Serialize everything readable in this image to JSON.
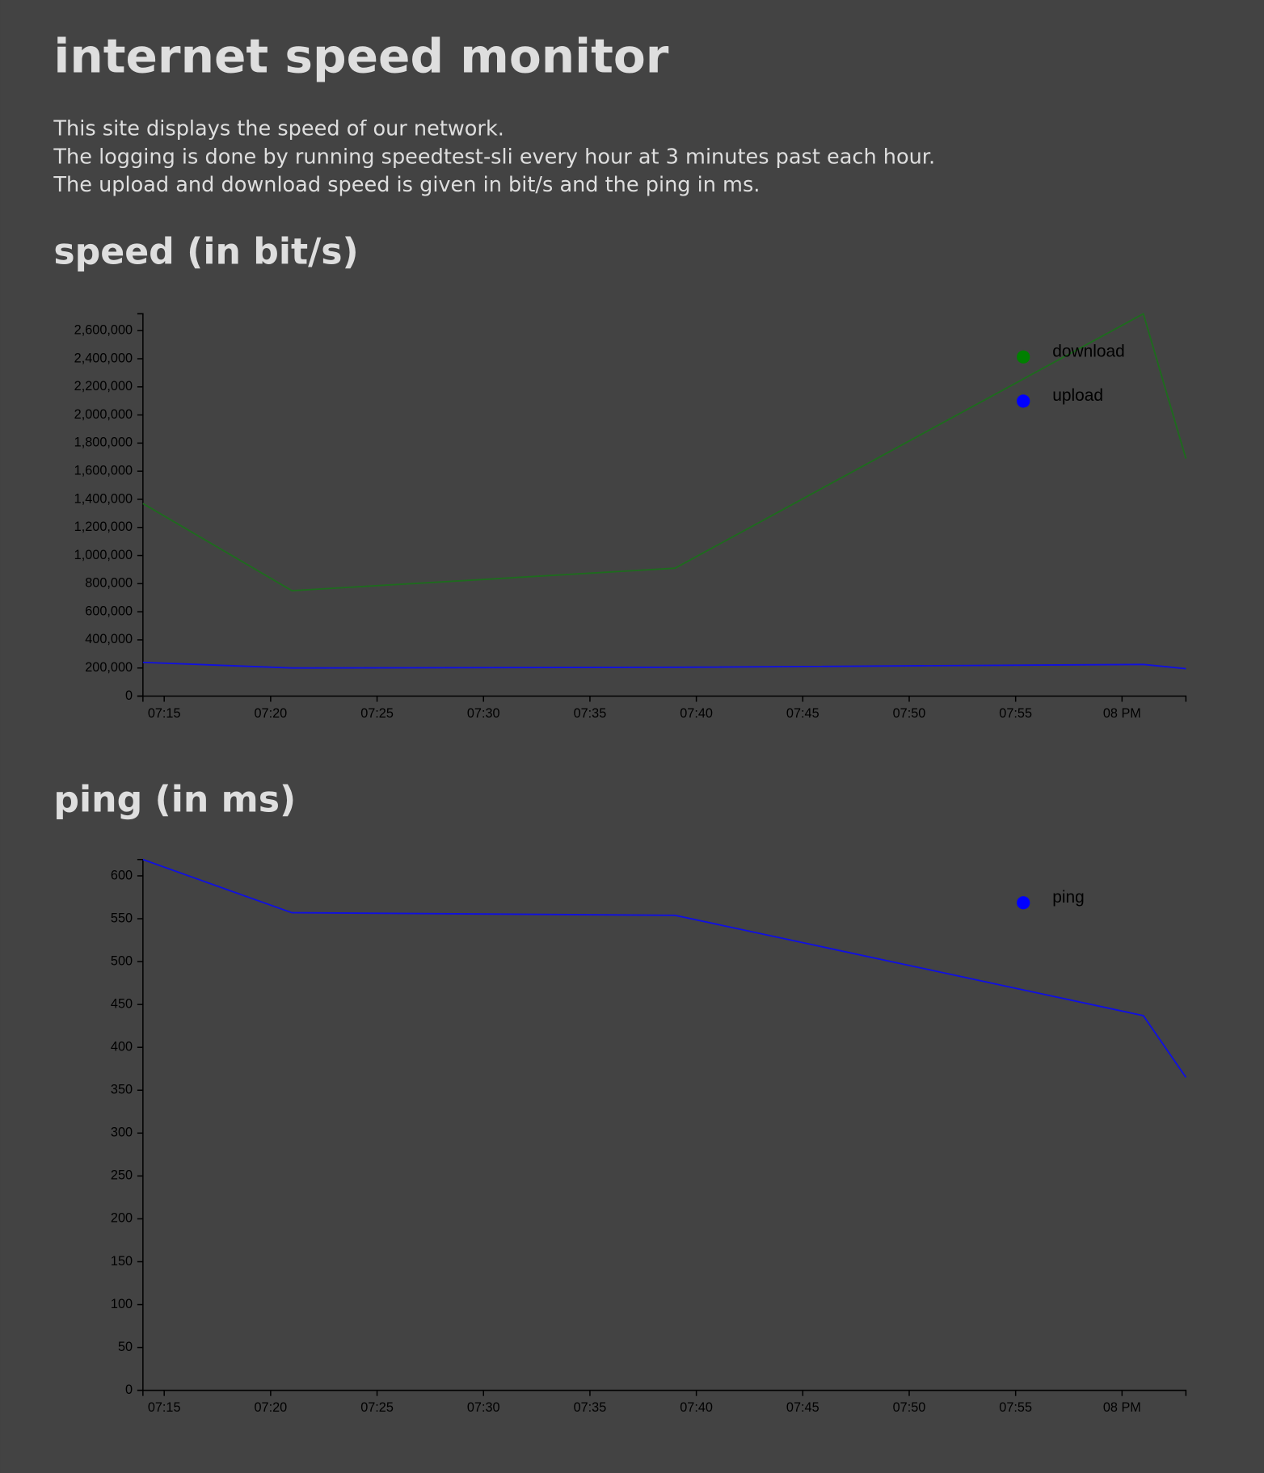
{
  "header": {
    "title": "internet speed monitor",
    "description": [
      "This site displays the speed of our network.",
      "The logging is done by running speedtest-sli every hour at 3 minutes past each hour.",
      "The upload and download speed is given in bit/s and the ping in ms."
    ]
  },
  "chart_data": [
    {
      "type": "line",
      "title": "speed (in bit/s)",
      "x": [
        "19:14",
        "19:21",
        "19:39",
        "20:01",
        "20:03"
      ],
      "series": [
        {
          "name": "download",
          "color": "#1e6b1e",
          "legend_color": "green",
          "values": [
            1370000,
            750000,
            910000,
            2720000,
            1690000
          ]
        },
        {
          "name": "upload",
          "color": "#1010e0",
          "legend_color": "blue",
          "values": [
            240000,
            200000,
            205000,
            225000,
            195000
          ]
        }
      ],
      "xlim": [
        "19:14",
        "20:03"
      ],
      "xticks": [
        {
          "value": "19:15",
          "label": "07:15"
        },
        {
          "value": "19:20",
          "label": "07:20"
        },
        {
          "value": "19:25",
          "label": "07:25"
        },
        {
          "value": "19:30",
          "label": "07:30"
        },
        {
          "value": "19:35",
          "label": "07:35"
        },
        {
          "value": "19:40",
          "label": "07:40"
        },
        {
          "value": "19:45",
          "label": "07:45"
        },
        {
          "value": "19:50",
          "label": "07:50"
        },
        {
          "value": "19:55",
          "label": "07:55"
        },
        {
          "value": "20:00",
          "label": "08 PM"
        }
      ],
      "ylim": [
        0,
        2720000
      ],
      "yticks": [
        0,
        {
          "value": 200000,
          "label": "200,000"
        },
        {
          "value": 400000,
          "label": "400,000"
        },
        {
          "value": 600000,
          "label": "600,000"
        },
        {
          "value": 800000,
          "label": "800,000"
        },
        {
          "value": 1000000,
          "label": "1,000,000"
        },
        {
          "value": 1200000,
          "label": "1,200,000"
        },
        {
          "value": 1400000,
          "label": "1,400,000"
        },
        {
          "value": 1600000,
          "label": "1,600,000"
        },
        {
          "value": 1800000,
          "label": "1,800,000"
        },
        {
          "value": 2000000,
          "label": "2,000,000"
        },
        {
          "value": 2200000,
          "label": "2,200,000"
        },
        {
          "value": 2400000,
          "label": "2,400,000"
        },
        {
          "value": 2600000,
          "label": "2,600,000"
        }
      ],
      "legend": "top-right"
    },
    {
      "type": "line",
      "title": "ping (in ms)",
      "x": [
        "19:14",
        "19:21",
        "19:39",
        "20:01",
        "20:03"
      ],
      "series": [
        {
          "name": "ping",
          "color": "#1010e0",
          "legend_color": "blue",
          "values": [
            619,
            557,
            554,
            437,
            365
          ]
        }
      ],
      "xlim": [
        "19:14",
        "20:03"
      ],
      "xticks": [
        {
          "value": "19:15",
          "label": "07:15"
        },
        {
          "value": "19:20",
          "label": "07:20"
        },
        {
          "value": "19:25",
          "label": "07:25"
        },
        {
          "value": "19:30",
          "label": "07:30"
        },
        {
          "value": "19:35",
          "label": "07:35"
        },
        {
          "value": "19:40",
          "label": "07:40"
        },
        {
          "value": "19:45",
          "label": "07:45"
        },
        {
          "value": "19:50",
          "label": "07:50"
        },
        {
          "value": "19:55",
          "label": "07:55"
        },
        {
          "value": "20:00",
          "label": "08 PM"
        }
      ],
      "ylim": [
        0,
        619
      ],
      "yticks": [
        0,
        50,
        100,
        150,
        200,
        250,
        300,
        350,
        400,
        450,
        500,
        550,
        600
      ],
      "legend": "top-right"
    }
  ]
}
